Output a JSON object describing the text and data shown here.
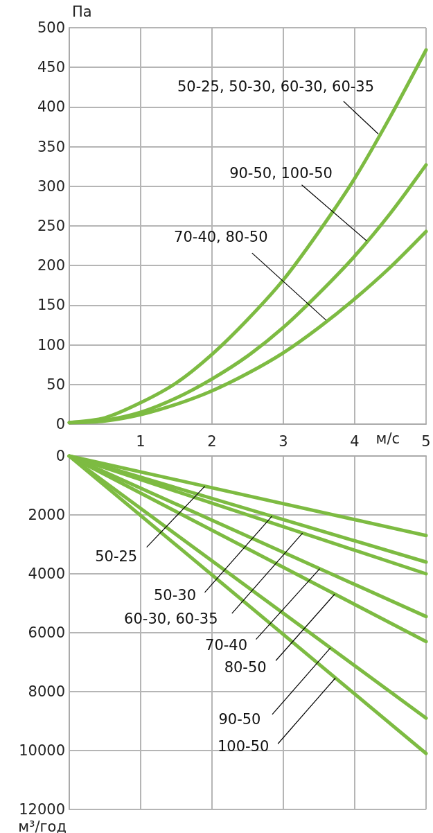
{
  "chart_data": [
    {
      "type": "line",
      "ylabel": "Па",
      "xlabel": "м/с",
      "xlim": [
        0,
        5
      ],
      "xticks": [
        1,
        2,
        3,
        4,
        5
      ],
      "ylim": [
        0,
        500
      ],
      "yticks": [
        0,
        50,
        100,
        150,
        200,
        250,
        300,
        350,
        400,
        450,
        500
      ],
      "grid": true,
      "marker": "none",
      "line_style": "solid",
      "series": [
        {
          "color": "#7dbb42",
          "x": [
            0,
            0.5,
            1,
            1.5,
            2,
            2.5,
            3,
            3.5,
            4,
            4.5,
            5
          ],
          "values": [
            2,
            8,
            27,
            52,
            88,
            132,
            182,
            243,
            310,
            388,
            472
          ]
        },
        {
          "color": "#7dbb42",
          "x": [
            0,
            0.5,
            1,
            1.5,
            2,
            2.5,
            3,
            3.5,
            4,
            4.5,
            5
          ],
          "values": [
            2,
            5,
            15,
            33,
            57,
            86,
            122,
            165,
            212,
            266,
            327
          ]
        },
        {
          "color": "#7dbb42",
          "x": [
            0,
            0.5,
            1,
            1.5,
            2,
            2.5,
            3,
            3.5,
            4,
            4.5,
            5
          ],
          "values": [
            2,
            4,
            12,
            25,
            42,
            64,
            90,
            122,
            158,
            198,
            243
          ]
        }
      ],
      "annotations": [
        {
          "text": "50-25, 50-30, 60-30, 60-35",
          "x": 4.33,
          "y": 366
        },
        {
          "text": "90-50, 100-50",
          "x": 4.17,
          "y": 231
        },
        {
          "text": "70-40, 80-50",
          "x": 3.6,
          "y": 131
        }
      ]
    },
    {
      "type": "line",
      "ylabel": "м³/год",
      "xlim": [
        0,
        5
      ],
      "xticks": [
        1,
        2,
        3,
        4,
        5
      ],
      "ylim": [
        12000,
        0
      ],
      "yticks": [
        0,
        2000,
        4000,
        6000,
        8000,
        10000,
        12000
      ],
      "grid": true,
      "marker": "none",
      "line_style": "solid",
      "tick_labels": "y",
      "series": [
        {
          "color": "#7dbb42",
          "x": [
            0,
            5
          ],
          "values": [
            0,
            2700
          ]
        },
        {
          "color": "#7dbb42",
          "x": [
            0,
            5
          ],
          "values": [
            0,
            3600
          ]
        },
        {
          "color": "#7dbb42",
          "x": [
            0,
            5
          ],
          "values": [
            0,
            4000
          ]
        },
        {
          "color": "#7dbb42",
          "x": [
            0,
            5
          ],
          "values": [
            0,
            5450
          ]
        },
        {
          "color": "#7dbb42",
          "x": [
            0,
            5
          ],
          "values": [
            0,
            6300
          ]
        },
        {
          "color": "#7dbb42",
          "x": [
            0,
            5
          ],
          "values": [
            0,
            8900
          ]
        },
        {
          "color": "#7dbb42",
          "x": [
            0,
            5
          ],
          "values": [
            0,
            10100
          ]
        }
      ],
      "annotations": [
        {
          "text": "50-25",
          "x": 1.9,
          "y": 1026
        },
        {
          "text": "50-30",
          "x": 2.84,
          "y": 2045
        },
        {
          "text": "60-30, 60-35",
          "x": 3.27,
          "y": 2615
        },
        {
          "text": "70-40",
          "x": 3.51,
          "y": 3826
        },
        {
          "text": "80-50",
          "x": 3.72,
          "y": 4688
        },
        {
          "text": "90-50",
          "x": 3.66,
          "y": 6515
        },
        {
          "text": "100-50",
          "x": 3.73,
          "y": 7535
        }
      ]
    }
  ]
}
